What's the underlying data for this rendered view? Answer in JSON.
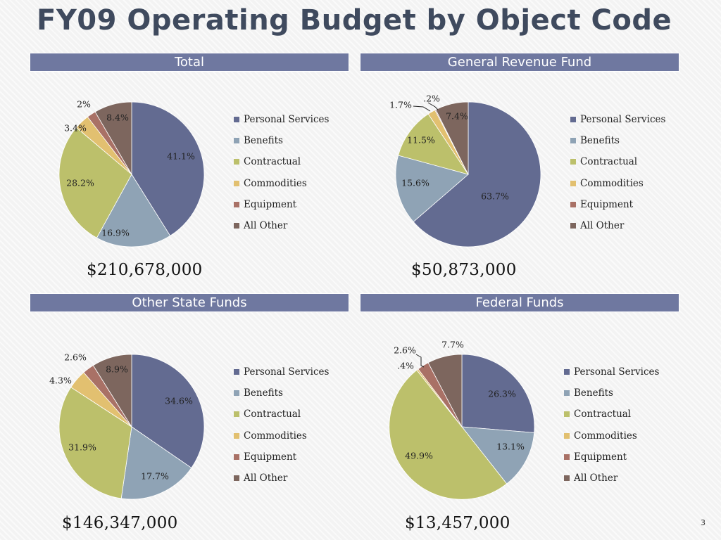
{
  "slide": {
    "title": "FY09 Operating Budget by Object Code",
    "number": "3"
  },
  "colors": {
    "Personal Services": "#636b91",
    "Benefits": "#8fa3b5",
    "Contractual": "#bcc06b",
    "Commodities": "#e2c070",
    "Equipment": "#a97166",
    "All Other": "#7d665e"
  },
  "chart_data": [
    {
      "type": "pie",
      "title": "Total",
      "total": "$210,678,000",
      "labels": [
        "Personal Services",
        "Benefits",
        "Contractual",
        "Commodities",
        "Equipment",
        "All Other"
      ],
      "values": [
        41.1,
        16.9,
        28.2,
        3.4,
        2.0,
        8.4
      ],
      "value_labels": [
        "41.1%",
        "16.9%",
        "28.2%",
        "3.4%",
        "2%",
        "8.4%"
      ],
      "legend_position": "right"
    },
    {
      "type": "pie",
      "title": "General Revenue Fund",
      "total": "$50,873,000",
      "labels": [
        "Personal Services",
        "Benefits",
        "Contractual",
        "Commodities",
        "Equipment",
        "All Other"
      ],
      "values": [
        63.7,
        15.6,
        11.5,
        1.7,
        0.2,
        7.4
      ],
      "value_labels": [
        "63.7%",
        "15.6%",
        "11.5%",
        "1.7%",
        ".2%",
        "7.4%"
      ],
      "legend_position": "right"
    },
    {
      "type": "pie",
      "title": "Other State Funds",
      "total": "$146,347,000",
      "labels": [
        "Personal Services",
        "Benefits",
        "Contractual",
        "Commodities",
        "Equipment",
        "All Other"
      ],
      "values": [
        34.6,
        17.7,
        31.9,
        4.3,
        2.6,
        8.9
      ],
      "value_labels": [
        "34.6%",
        "17.7%",
        "31.9%",
        "4.3%",
        "2.6%",
        "8.9%"
      ],
      "legend_position": "right"
    },
    {
      "type": "pie",
      "title": "Federal Funds",
      "total": "$13,457,000",
      "labels": [
        "Personal Services",
        "Benefits",
        "Contractual",
        "Commodities",
        "Equipment",
        "All Other"
      ],
      "values": [
        26.3,
        13.1,
        49.9,
        0.4,
        2.6,
        7.7
      ],
      "value_labels": [
        "26.3%",
        "13.1%",
        "49.9%",
        ".4%",
        "2.6%",
        "7.7%"
      ],
      "legend_position": "right"
    }
  ]
}
